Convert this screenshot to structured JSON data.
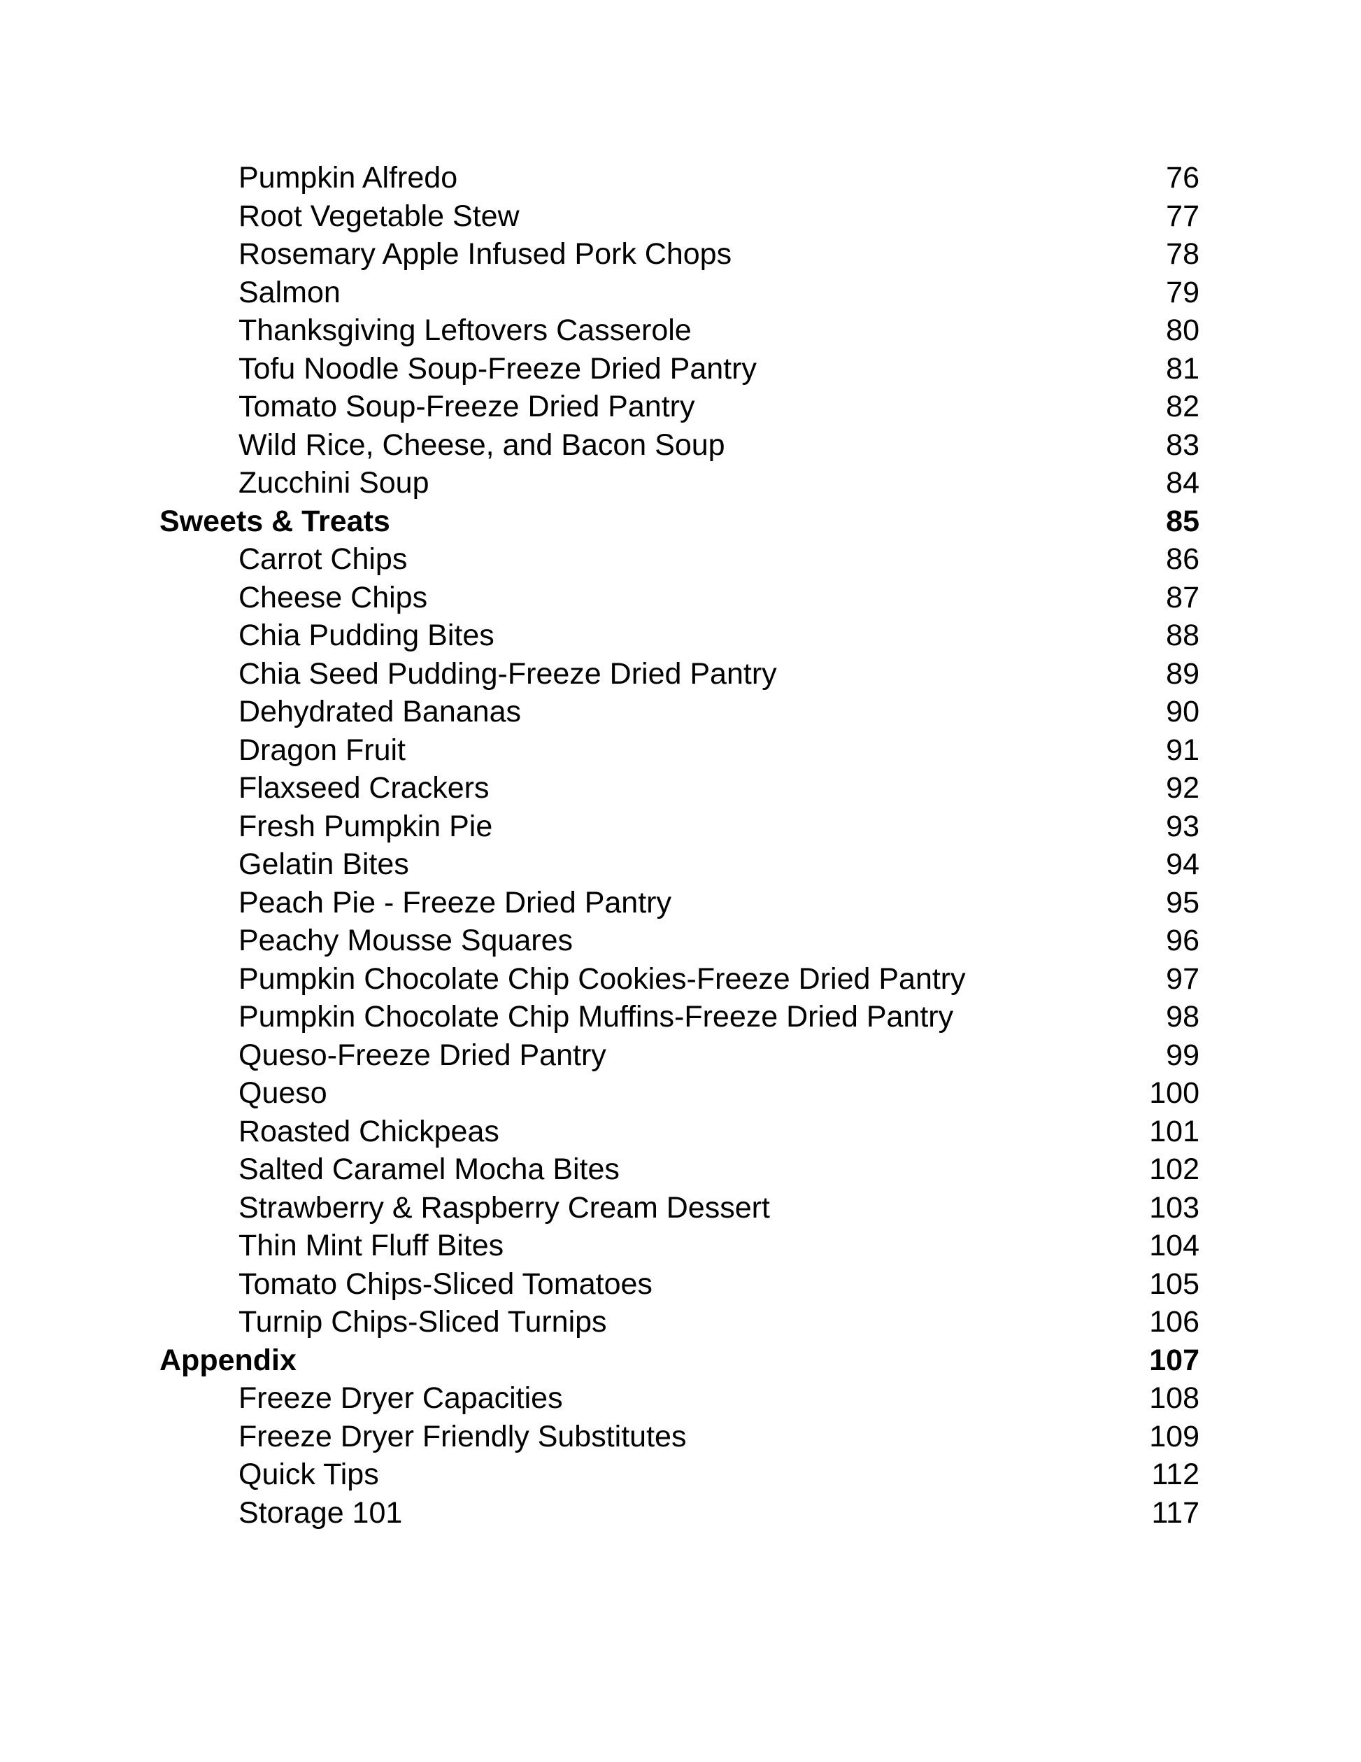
{
  "toc": [
    {
      "level": "sub",
      "title": "Pumpkin Alfredo",
      "page": "76"
    },
    {
      "level": "sub",
      "title": "Root Vegetable Stew",
      "page": "77"
    },
    {
      "level": "sub",
      "title": "Rosemary Apple Infused Pork Chops",
      "page": "78"
    },
    {
      "level": "sub",
      "title": "Salmon",
      "page": "79"
    },
    {
      "level": "sub",
      "title": "Thanksgiving Leftovers Casserole",
      "page": "80"
    },
    {
      "level": "sub",
      "title": "Tofu Noodle Soup-Freeze Dried Pantry",
      "page": "81"
    },
    {
      "level": "sub",
      "title": "Tomato Soup-Freeze Dried Pantry",
      "page": "82"
    },
    {
      "level": "sub",
      "title": "Wild Rice, Cheese, and Bacon Soup",
      "page": "83"
    },
    {
      "level": "sub",
      "title": "Zucchini Soup",
      "page": "84"
    },
    {
      "level": "head",
      "title": "Sweets & Treats",
      "page": "85"
    },
    {
      "level": "sub",
      "title": "Carrot Chips",
      "page": "86"
    },
    {
      "level": "sub",
      "title": "Cheese Chips",
      "page": "87"
    },
    {
      "level": "sub",
      "title": "Chia Pudding Bites",
      "page": "88"
    },
    {
      "level": "sub",
      "title": "Chia Seed Pudding-Freeze Dried Pantry",
      "page": "89"
    },
    {
      "level": "sub",
      "title": "Dehydrated Bananas",
      "page": "90"
    },
    {
      "level": "sub",
      "title": "Dragon Fruit",
      "page": "91"
    },
    {
      "level": "sub",
      "title": "Flaxseed Crackers",
      "page": "92"
    },
    {
      "level": "sub",
      "title": "Fresh Pumpkin Pie",
      "page": "93"
    },
    {
      "level": "sub",
      "title": "Gelatin Bites",
      "page": "94"
    },
    {
      "level": "sub",
      "title": "Peach Pie - Freeze Dried Pantry",
      "page": "95"
    },
    {
      "level": "sub",
      "title": "Peachy Mousse Squares",
      "page": "96"
    },
    {
      "level": "sub",
      "title": "Pumpkin Chocolate Chip Cookies-Freeze Dried Pantry",
      "page": "97"
    },
    {
      "level": "sub",
      "title": "Pumpkin Chocolate Chip Muffins-Freeze Dried Pantry",
      "page": "98"
    },
    {
      "level": "sub",
      "title": "Queso-Freeze Dried Pantry",
      "page": "99"
    },
    {
      "level": "sub",
      "title": "Queso",
      "page": "100"
    },
    {
      "level": "sub",
      "title": "Roasted Chickpeas",
      "page": "101"
    },
    {
      "level": "sub",
      "title": "Salted Caramel Mocha Bites",
      "page": "102"
    },
    {
      "level": "sub",
      "title": "Strawberry & Raspberry Cream Dessert",
      "page": "103"
    },
    {
      "level": "sub",
      "title": "Thin Mint Fluff Bites",
      "page": "104"
    },
    {
      "level": "sub",
      "title": "Tomato Chips-Sliced Tomatoes",
      "page": "105"
    },
    {
      "level": "sub",
      "title": "Turnip Chips-Sliced Turnips",
      "page": "106"
    },
    {
      "level": "head",
      "title": "Appendix",
      "page": "107"
    },
    {
      "level": "sub",
      "title": "Freeze Dryer Capacities",
      "page": "108"
    },
    {
      "level": "sub",
      "title": "Freeze Dryer Friendly Substitutes",
      "page": "109"
    },
    {
      "level": "sub",
      "title": "Quick Tips",
      "page": "112"
    },
    {
      "level": "sub",
      "title": "Storage 101",
      "page": "117"
    }
  ]
}
